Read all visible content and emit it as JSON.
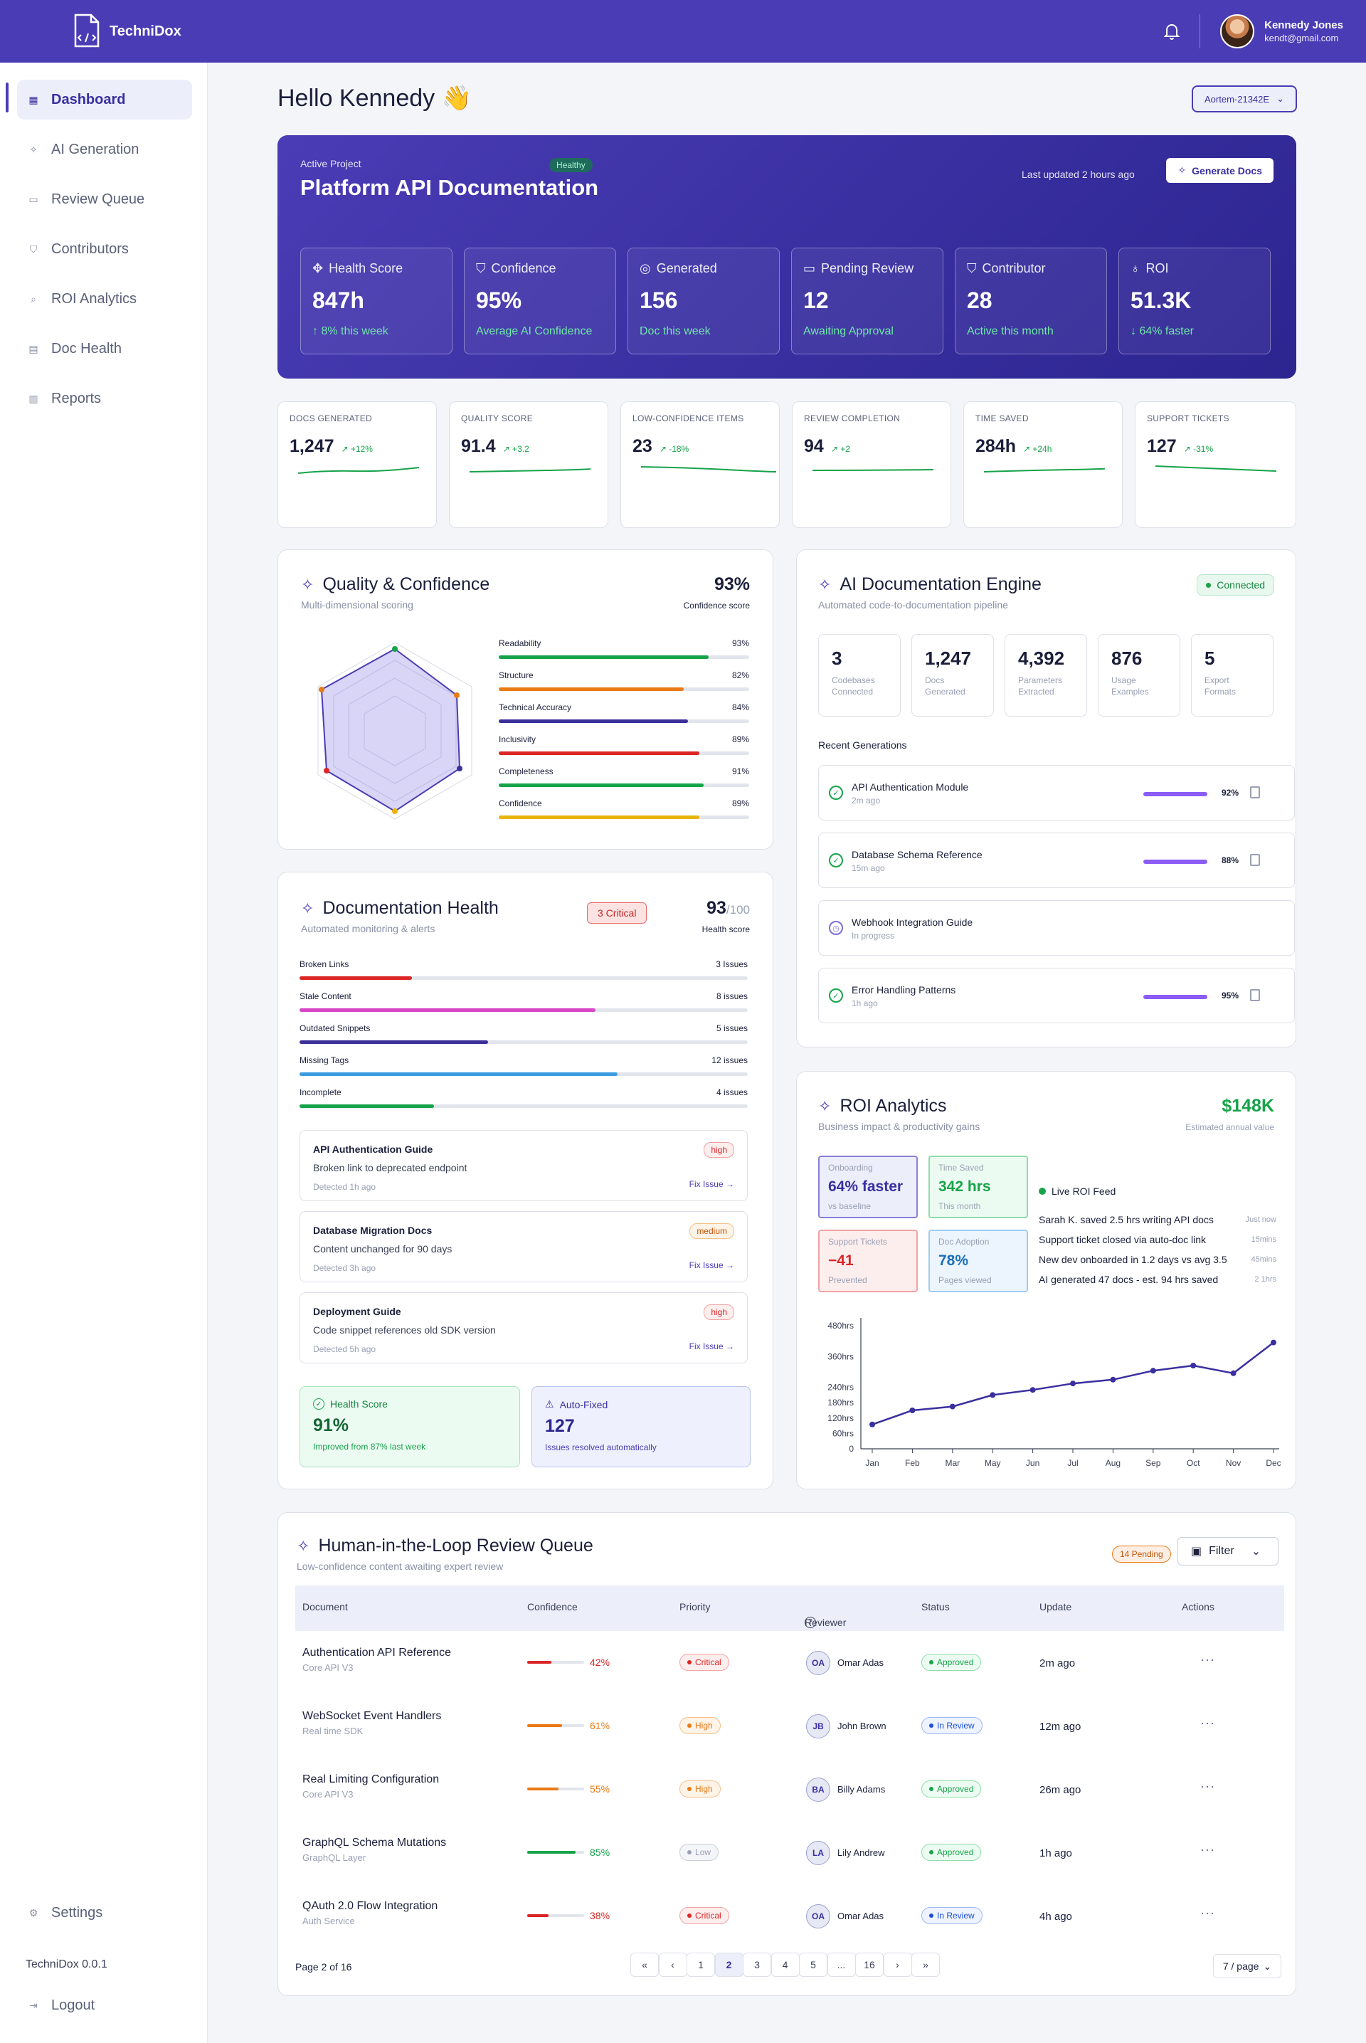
{
  "app": {
    "name": "TechniDox",
    "version": "TechniDox 0.0.1"
  },
  "user": {
    "name": "Kennedy Jones",
    "email": "kendt@gmail.com"
  },
  "sidebar": {
    "items": [
      {
        "label": "Dashboard",
        "icon": "grid-icon"
      },
      {
        "label": "AI Generation",
        "icon": "sparkle-icon"
      },
      {
        "label": "Review Queue",
        "icon": "chat-icon"
      },
      {
        "label": "Contributors",
        "icon": "shield-icon"
      },
      {
        "label": "ROI Analytics",
        "icon": "search-chart-icon"
      },
      {
        "label": "Doc Health",
        "icon": "document-icon"
      },
      {
        "label": "Reports",
        "icon": "report-icon"
      }
    ],
    "settings": "Settings",
    "logout": "Logout"
  },
  "greeting": "Hello Kennedy 👋",
  "project_select": "Aortem-21342E",
  "hero": {
    "label": "Active Project",
    "badge": "Healthy",
    "title": "Platform API Documentation",
    "updated": "Last updated 2 hours ago",
    "button": "Generate Docs",
    "stats": [
      {
        "title": "Health Score",
        "value": "847h",
        "sub": "↑ 8% this week"
      },
      {
        "title": "Confidence",
        "value": "95%",
        "sub": "Average AI Confidence"
      },
      {
        "title": "Generated",
        "value": "156",
        "sub": "Doc this week"
      },
      {
        "title": "Pending Review",
        "value": "12",
        "sub": "Awaiting Approval"
      },
      {
        "title": "Contributor",
        "value": "28",
        "sub": "Active this month"
      },
      {
        "title": "ROI",
        "value": "51.3K",
        "sub": "↓ 64% faster"
      }
    ]
  },
  "kpis": [
    {
      "title": "DOCS GENERATED",
      "value": "1,247",
      "delta": "↗ +12%"
    },
    {
      "title": "QUALITY SCORE",
      "value": "91.4",
      "delta": "↗ +3.2"
    },
    {
      "title": "LOW-CONFIDENCE ITEMS",
      "value": "23",
      "delta": "↗ -18%"
    },
    {
      "title": "REVIEW COMPLETION",
      "value": "94",
      "delta": "↗ +2"
    },
    {
      "title": "TIME SAVED",
      "value": "284h",
      "delta": "↗ +24h"
    },
    {
      "title": "SUPPORT TICKETS",
      "value": "127",
      "delta": "↗ -31%"
    }
  ],
  "quality": {
    "title": "Quality & Confidence",
    "subtitle": "Multi-dimensional scoring",
    "score": "93%",
    "score_label": "Confidence score",
    "metrics": [
      {
        "label": "Readability",
        "value": "93%",
        "pct": 93,
        "color": "#16a34a"
      },
      {
        "label": "Structure",
        "value": "82%",
        "pct": 82,
        "color": "#ea7a16"
      },
      {
        "label": "Technical Accuracy",
        "value": "84%",
        "pct": 84,
        "color": "#3b2f9a"
      },
      {
        "label": "Inclusivity",
        "value": "89%",
        "pct": 89,
        "color": "#dc2626"
      },
      {
        "label": "Completeness",
        "value": "91%",
        "pct": 91,
        "color": "#16a34a"
      },
      {
        "label": "Confidence",
        "value": "89%",
        "pct": 89,
        "color": "#eab308"
      }
    ]
  },
  "engine": {
    "title": "AI Documentation Engine",
    "subtitle": "Automated code-to-documentation pipeline",
    "status": "Connected",
    "stats": [
      {
        "value": "3",
        "label": "Codebases Connected"
      },
      {
        "value": "1,247",
        "label": "Docs Generated"
      },
      {
        "value": "4,392",
        "label": "Parameters Extracted"
      },
      {
        "value": "876",
        "label": "Usage Examples"
      },
      {
        "value": "5",
        "label": "Export Formats"
      }
    ],
    "recent_label": "Recent Generations",
    "recent": [
      {
        "name": "API Authentication Module",
        "time": "2m ago",
        "pct": "92%",
        "done": true
      },
      {
        "name": "Database Schema Reference",
        "time": "15m ago",
        "pct": "88%",
        "done": true
      },
      {
        "name": "Webhook Integration Guide",
        "time": "In progress",
        "pct": "",
        "done": false
      },
      {
        "name": "Error Handling Patterns",
        "time": "1h ago",
        "pct": "95%",
        "done": true
      }
    ]
  },
  "health": {
    "title": "Documentation Health",
    "subtitle": "Automated monitoring & alerts",
    "critical": "3 Critical",
    "score": "93",
    "score_max": "/100",
    "score_label": "Health score",
    "rows": [
      {
        "label": "Broken Links",
        "value": "3 Issues",
        "pct": 25,
        "color": "#dc2626"
      },
      {
        "label": "Stale Content",
        "value": "8 issues",
        "pct": 66,
        "color": "#d946c5"
      },
      {
        "label": "Outdated Snippets",
        "value": "5 issues",
        "pct": 42,
        "color": "#3b2f9a"
      },
      {
        "label": "Missing Tags",
        "value": "12 issues",
        "pct": 71,
        "color": "#3b9be0"
      },
      {
        "label": "Incomplete",
        "value": "4 issues",
        "pct": 30,
        "color": "#16a34a"
      }
    ],
    "issues": [
      {
        "name": "API Authentication Guide",
        "desc": "Broken link to deprecated endpoint",
        "time": "Detected 1h ago",
        "sev": "high",
        "fix": "Fix Issue →"
      },
      {
        "name": "Database Migration Docs",
        "desc": "Content unchanged for 90 days",
        "time": "Detected 3h ago",
        "sev": "medium",
        "fix": "Fix Issue →"
      },
      {
        "name": "Deployment Guide",
        "desc": "Code snippet references old SDK version",
        "time": "Detected 5h ago",
        "sev": "high",
        "fix": "Fix Issue →"
      }
    ],
    "summary": [
      {
        "title": "Health Score",
        "value": "91%",
        "sub": "Improved from 87% last week"
      },
      {
        "title": "Auto-Fixed",
        "value": "127",
        "sub": "Issues resolved automatically"
      }
    ]
  },
  "roi": {
    "title": "ROI Analytics",
    "subtitle": "Business impact & productivity gains",
    "value": "$148K",
    "value_label": "Estimated annual value",
    "tiles": [
      {
        "title": "Onboarding",
        "value": "64% faster",
        "sub": "vs baseline"
      },
      {
        "title": "Time Saved",
        "value": "342 hrs",
        "sub": "This month"
      },
      {
        "title": "Support Tickets",
        "value": "−41",
        "sub": "Prevented"
      },
      {
        "title": "Doc Adoption",
        "value": "78%",
        "sub": "Pages viewed"
      }
    ],
    "feed_title": "Live ROI Feed",
    "feed": [
      {
        "text": "Sarah K. saved 2.5 hrs writing API docs",
        "time": "Just now"
      },
      {
        "text": "Support ticket closed via auto-doc link",
        "time": "15mins"
      },
      {
        "text": "New dev onboarded in 1.2 days vs avg 3.5",
        "time": "45mins"
      },
      {
        "text": "AI generated 47 docs - est. 94 hrs saved",
        "time": "2 1hrs"
      }
    ]
  },
  "chart_data": {
    "type": "line",
    "x": [
      "Jan",
      "Feb",
      "Mar",
      "May",
      "Jun",
      "Jul",
      "Aug",
      "Sep",
      "Oct",
      "Nov",
      "Dec"
    ],
    "series": [
      {
        "values": [
          95,
          150,
          165,
          210,
          230,
          255,
          270,
          305,
          325,
          295,
          415
        ]
      }
    ],
    "yticks": [
      "0",
      "60hrs",
      "120hrs",
      "180hrs",
      "240hrs",
      "360hrs",
      "480hrs"
    ],
    "ylim": [
      0,
      500
    ],
    "grid": false
  },
  "queue": {
    "title": "Human-in-the-Loop Review Queue",
    "subtitle": "Low-confidence content awaiting expert review",
    "pending": "14 Pending",
    "filter": "Filter",
    "columns": [
      "Document",
      "Confidence",
      "Priority",
      "Reviewer",
      "Status",
      "Update",
      "Actions"
    ],
    "rows": [
      {
        "doc": "Authentication API Reference",
        "cat": "Core API V3",
        "conf": "42%",
        "pct": 42,
        "conf_color": "#dc2626",
        "priority": "Critical",
        "reviewer": "Omar Adas",
        "initials": "OA",
        "status": "Approved",
        "update": "2m ago"
      },
      {
        "doc": "WebSocket Event Handlers",
        "cat": "Real time SDK",
        "conf": "61%",
        "pct": 61,
        "conf_color": "#ea7a16",
        "priority": "High",
        "reviewer": "John Brown",
        "initials": "JB",
        "status": "In Review",
        "update": "12m ago"
      },
      {
        "doc": "Real Limiting Configuration",
        "cat": "Core API V3",
        "conf": "55%",
        "pct": 55,
        "conf_color": "#ea7a16",
        "priority": "High",
        "reviewer": "Billy Adams",
        "initials": "BA",
        "status": "Approved",
        "update": "26m ago"
      },
      {
        "doc": "GraphQL Schema Mutations",
        "cat": "GraphQL  Layer",
        "conf": "85%",
        "pct": 85,
        "conf_color": "#16a34a",
        "priority": "Low",
        "reviewer": "Lily Andrew",
        "initials": "LA",
        "status": "Approved",
        "update": "1h ago"
      },
      {
        "doc": "QAuth 2.0 Flow Integration",
        "cat": "Auth Service",
        "conf": "38%",
        "pct": 38,
        "conf_color": "#dc2626",
        "priority": "Critical",
        "reviewer": "Omar Adas",
        "initials": "OA",
        "status": "In Review",
        "update": "4h ago"
      }
    ],
    "page_label": "Page 2 of 16",
    "pages": [
      "«",
      "‹",
      "1",
      "2",
      "3",
      "4",
      "5",
      "...",
      "16",
      "›",
      "»"
    ],
    "per_page": "7 / page"
  }
}
